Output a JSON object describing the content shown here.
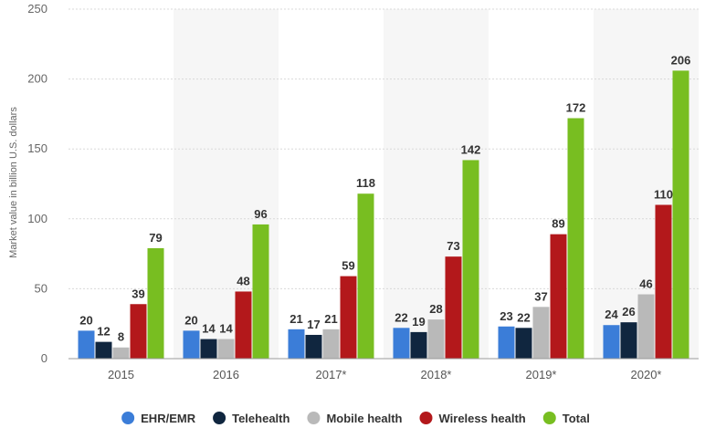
{
  "chart_data": {
    "type": "bar",
    "title": "",
    "xlabel": "",
    "ylabel": "Market value in billion U.S. dollars",
    "ylim": [
      0,
      250
    ],
    "yticks": [
      0,
      50,
      100,
      150,
      200,
      250
    ],
    "grid": true,
    "legend_position": "bottom",
    "categories": [
      "2015",
      "2016",
      "2017*",
      "2018*",
      "2019*",
      "2020*"
    ],
    "series": [
      {
        "name": "EHR/EMR",
        "color": "#3b7dd8",
        "values": [
          20,
          20,
          21,
          22,
          23,
          24
        ]
      },
      {
        "name": "Telehealth",
        "color": "#10263f",
        "values": [
          12,
          14,
          17,
          19,
          22,
          26
        ]
      },
      {
        "name": "Mobile health",
        "color": "#b9b9b9",
        "values": [
          8,
          14,
          21,
          28,
          37,
          46
        ]
      },
      {
        "name": "Wireless health",
        "color": "#b3181b",
        "values": [
          39,
          48,
          59,
          73,
          89,
          110
        ]
      },
      {
        "name": "Total",
        "color": "#78be21",
        "values": [
          79,
          96,
          118,
          142,
          172,
          206
        ]
      }
    ]
  }
}
